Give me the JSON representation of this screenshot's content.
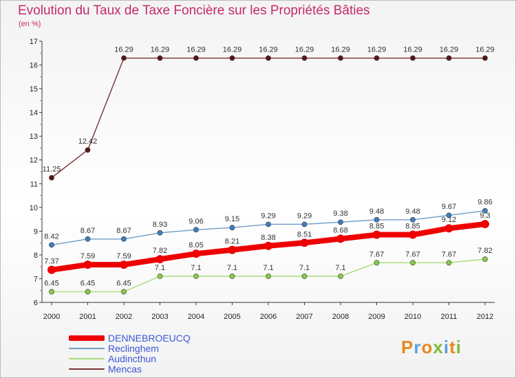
{
  "title": "Evolution du Taux de Taxe Foncière sur les Propriétés Bâties",
  "unit_label": "(en %)",
  "brand": "Proxiti",
  "brand_colors": [
    "#e58a1f",
    "#5aa0de",
    "#e58a1f",
    "#7dba3c",
    "#5aa0de",
    "#e58a1f",
    "#7dba3c"
  ],
  "chart_data": {
    "type": "line",
    "title": "Evolution du Taux de Taxe Foncière sur les Propriétés Bâties",
    "ylabel": "(en %)",
    "xlabel": "",
    "ylim": [
      6,
      17
    ],
    "yticks": [
      6,
      7,
      8,
      9,
      10,
      11,
      12,
      13,
      14,
      15,
      16,
      17
    ],
    "x": [
      "2000",
      "2001",
      "2002",
      "2003",
      "2004",
      "2005",
      "2006",
      "2007",
      "2008",
      "2009",
      "2010",
      "2011",
      "2012"
    ],
    "series": [
      {
        "name": "Mencas",
        "color": "#7a2f33",
        "marker_color": "#5a1519",
        "width": 1.4,
        "values": [
          11.25,
          12.42,
          16.29,
          16.29,
          16.29,
          16.29,
          16.29,
          16.29,
          16.29,
          16.29,
          16.29,
          16.29,
          16.29
        ],
        "labels": [
          "11.25",
          "12.42",
          "16.29",
          "16.29",
          "16.29",
          "16.29",
          "16.29",
          "16.29",
          "16.29",
          "16.29",
          "16.29",
          "16.29",
          "16.29"
        ]
      },
      {
        "name": "Reclinghem",
        "color": "#6f9cc4",
        "marker_color": "#3d7fbd",
        "width": 1.4,
        "values": [
          8.42,
          8.67,
          8.67,
          8.93,
          9.06,
          9.15,
          9.29,
          9.29,
          9.38,
          9.48,
          9.48,
          9.67,
          9.86
        ],
        "labels": [
          "8.42",
          "8.67",
          "8.67",
          "8.93",
          "9.06",
          "9.15",
          "9.29",
          "9.29",
          "9.38",
          "9.48",
          "9.48",
          "9.67",
          "9.86"
        ]
      },
      {
        "name": "DENNEBROEUCQ",
        "color": "#ee0000",
        "marker_color": "#ee0000",
        "width": 8,
        "values": [
          7.37,
          7.59,
          7.59,
          7.82,
          8.05,
          8.21,
          8.38,
          8.51,
          8.68,
          8.85,
          8.85,
          9.12,
          9.3
        ],
        "labels": [
          "7.37",
          "7.59",
          "7.59",
          "7.82",
          "8.05",
          "8.21",
          "8.38",
          "8.51",
          "8.68",
          "8.85",
          "8.85",
          "9.12",
          "9.3"
        ]
      },
      {
        "name": "Audincthun",
        "color": "#a8dc78",
        "marker_color": "#88cc44",
        "width": 1.4,
        "values": [
          6.45,
          6.45,
          6.45,
          7.1,
          7.1,
          7.1,
          7.1,
          7.1,
          7.1,
          7.67,
          7.67,
          7.67,
          7.82
        ],
        "labels": [
          "6.45",
          "6.45",
          "6.45",
          "7.1",
          "7.1",
          "7.1",
          "7.1",
          "7.1",
          "7.1",
          "7.67",
          "7.67",
          "7.67",
          "7.82"
        ]
      }
    ],
    "legend": [
      {
        "name": "DENNEBROEUCQ",
        "color": "#ee0000",
        "thick": true
      },
      {
        "name": "Reclinghem",
        "color": "#6f9cc4",
        "thick": false
      },
      {
        "name": "Audincthun",
        "color": "#a8dc78",
        "thick": false
      },
      {
        "name": "Mencas",
        "color": "#7a2f33",
        "thick": false
      }
    ]
  }
}
